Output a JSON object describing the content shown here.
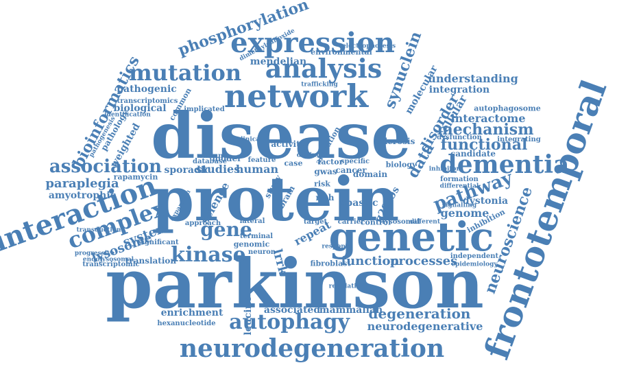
{
  "accent_color": "#4a7fb5",
  "words": {
    "parkinson": "parkinson",
    "disease": "disease",
    "protein": "protein",
    "genetic": "genetic",
    "frontotemporal": "frontotemporal",
    "network": "network",
    "expression": "expression",
    "analysis": "analysis",
    "mutation": "mutation",
    "interaction": "interaction",
    "complex": "complex",
    "dementia": "dementia",
    "association": "association",
    "neurodegeneration": "neurodegeneration",
    "autophagy": "autophagy",
    "kinase": "kinase",
    "gene": "gene",
    "phosphorylation": "phosphorylation",
    "bioinformatics": "bioinformatics",
    "synuclein": "synuclein",
    "functional": "functional",
    "mechanism": "mechanism",
    "pathway": "pathway",
    "neuroscience": "neuroscience",
    "degeneration": "degeneration",
    "neurodegenerative": "neurodegenerative",
    "processes": "processes",
    "function": "function",
    "lysosome": "lysosome",
    "system": "system",
    "paraplegia": "paraplegia",
    "amyotrophic": "amyotrophic",
    "understanding": "understanding",
    "integration": "integration",
    "interactome": "interactome",
    "disorder": "disorder",
    "data": "data",
    "mendelian": "mendelian",
    "pathogenic": "pathogenic",
    "biological": "biological",
    "studies": "studies",
    "human": "human",
    "sporadic": "sporadic",
    "science": "science",
    "leucine": "leucine",
    "enrichment": "enrichment",
    "associated": "associated",
    "mammalian": "mammalian",
    "genome": "genome",
    "dystonia": "dystonia",
    "candidate": "candidate",
    "autophagosome": "autophagosome",
    "cellular": "cellular",
    "molecular": "molecular",
    "sclerosis": "sclerosis",
    "model": "model",
    "activity": "activity",
    "weighted": "weighted",
    "translation": "translation",
    "transcriptomic": "transcriptomic",
    "transcriptomics": "transcriptomics",
    "rapamycin": "rapamycin",
    "brain": "brain",
    "spastic": "spastic",
    "g2019s": "g2019s",
    "gwas": "gwas",
    "cancer": "cancer",
    "domain": "domain",
    "fibroblast": "fibroblast",
    "neuron": "neuron",
    "genomic": "genomic",
    "biology": "biology",
    "environmental": "environmental",
    "dimethylsulfoxide": "dimethylsulfoxide",
    "electrophoresis": "electrophoresis",
    "common": "common",
    "implicated": "implicated",
    "lrrk": "lrrk",
    "database": "database",
    "variant": "variant",
    "feature": "feature",
    "case": "case",
    "factor": "factor",
    "specific": "specific",
    "rich": "rich",
    "risk": "risk",
    "study": "study",
    "inhibition": "inhibition",
    "control": "control",
    "lysosomal": "lysosomal",
    "carrier": "carrier",
    "independent": "independent",
    "formation": "formation",
    "hexanucleotide": "hexanucleotide",
    "significant": "significant",
    "progressive": "progressive",
    "endolysosomal": "endolysosomal",
    "dysfunction": "dysfunction",
    "integrating": "integrating",
    "approach": "approach",
    "terminal": "terminal",
    "lateral": "lateral",
    "repeat": "repeat",
    "alteration": "alteration",
    "response": "response",
    "target": "target",
    "different": "different",
    "clinical": "clinical",
    "trafficking": "trafficking",
    "identification": "identification",
    "pathology": "pathology",
    "expansion": "expansion",
    "pathogenesis": "pathogenesis",
    "transduction": "transduction",
    "inhibitor": "inhibitor",
    "regulation": "regulation",
    "epidemiology": "epidemiology",
    "signalling": "signalling",
    "differential": "differential",
    "distinct": "distinct"
  }
}
